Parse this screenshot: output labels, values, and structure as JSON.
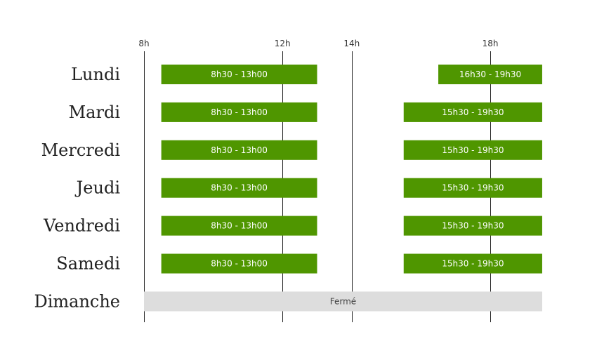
{
  "colors": {
    "open_bar": "#4f9600",
    "closed_bar": "#dddddd",
    "grid": "#222222",
    "text": "#222222"
  },
  "chart_data": {
    "type": "bar",
    "orientation": "horizontal",
    "grid": true,
    "x_unit": "hour",
    "x_range": [
      8,
      19.5
    ],
    "ticks": [
      {
        "value": 8,
        "label": "8h"
      },
      {
        "value": 12,
        "label": "12h"
      },
      {
        "value": 14,
        "label": "14h"
      },
      {
        "value": 18,
        "label": "18h"
      }
    ],
    "days": [
      {
        "name": "Lundi",
        "closed": false,
        "intervals": [
          {
            "start": 8.5,
            "end": 13.0,
            "label": "8h30 - 13h00"
          },
          {
            "start": 16.5,
            "end": 19.5,
            "label": "16h30 - 19h30"
          }
        ]
      },
      {
        "name": "Mardi",
        "closed": false,
        "intervals": [
          {
            "start": 8.5,
            "end": 13.0,
            "label": "8h30 - 13h00"
          },
          {
            "start": 15.5,
            "end": 19.5,
            "label": "15h30 - 19h30"
          }
        ]
      },
      {
        "name": "Mercredi",
        "closed": false,
        "intervals": [
          {
            "start": 8.5,
            "end": 13.0,
            "label": "8h30 - 13h00"
          },
          {
            "start": 15.5,
            "end": 19.5,
            "label": "15h30 - 19h30"
          }
        ]
      },
      {
        "name": "Jeudi",
        "closed": false,
        "intervals": [
          {
            "start": 8.5,
            "end": 13.0,
            "label": "8h30 - 13h00"
          },
          {
            "start": 15.5,
            "end": 19.5,
            "label": "15h30 - 19h30"
          }
        ]
      },
      {
        "name": "Vendredi",
        "closed": false,
        "intervals": [
          {
            "start": 8.5,
            "end": 13.0,
            "label": "8h30 - 13h00"
          },
          {
            "start": 15.5,
            "end": 19.5,
            "label": "15h30 - 19h30"
          }
        ]
      },
      {
        "name": "Samedi",
        "closed": false,
        "intervals": [
          {
            "start": 8.5,
            "end": 13.0,
            "label": "8h30 - 13h00"
          },
          {
            "start": 15.5,
            "end": 19.5,
            "label": "15h30 - 19h30"
          }
        ]
      },
      {
        "name": "Dimanche",
        "closed": true,
        "closed_label": "Fermé",
        "intervals": []
      }
    ]
  }
}
